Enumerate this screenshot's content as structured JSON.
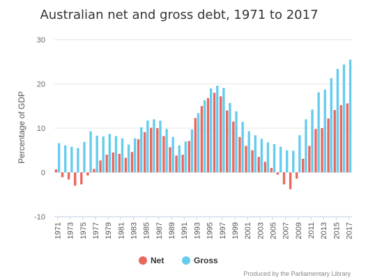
{
  "chart_data": {
    "type": "bar",
    "title": "Australian net and gross debt, 1971 to 2017",
    "ylabel": "Percentage of GDP",
    "xlabel": "",
    "ylim": [
      -10,
      30
    ],
    "yticks": [
      -10,
      0,
      10,
      20,
      30
    ],
    "grid": true,
    "legend_position": "bottom-center",
    "categories": [
      1971,
      1972,
      1973,
      1974,
      1975,
      1976,
      1977,
      1978,
      1979,
      1980,
      1981,
      1982,
      1983,
      1984,
      1985,
      1986,
      1987,
      1988,
      1989,
      1990,
      1991,
      1992,
      1993,
      1994,
      1995,
      1996,
      1997,
      1998,
      1999,
      2000,
      2001,
      2002,
      2003,
      2004,
      2005,
      2006,
      2007,
      2008,
      2009,
      2010,
      2011,
      2012,
      2013,
      2014,
      2015,
      2016,
      2017
    ],
    "x_tick_labels": [
      "1971",
      "1973",
      "1975",
      "1977",
      "1979",
      "1981",
      "1983",
      "1985",
      "1987",
      "1989",
      "1991",
      "1993",
      "1995",
      "1997",
      "1999",
      "2001",
      "2003",
      "2005",
      "2007",
      "2009",
      "2011",
      "2013",
      "2015",
      "2017"
    ],
    "series": [
      {
        "name": "Net",
        "color": "#e8685e",
        "values": [
          0.7,
          -1.1,
          -1.6,
          -3.0,
          -2.7,
          -0.7,
          0.8,
          2.7,
          4.0,
          4.5,
          4.2,
          3.3,
          4.6,
          7.5,
          9.1,
          10.1,
          10.0,
          8.2,
          5.7,
          3.8,
          4.0,
          7.1,
          12.3,
          15.0,
          16.8,
          18.0,
          17.2,
          14.0,
          11.5,
          8.0,
          6.0,
          5.0,
          3.5,
          2.4,
          1.0,
          -0.5,
          -2.7,
          -3.8,
          -1.4,
          3.1,
          6.0,
          9.8,
          10.0,
          12.2,
          14.1,
          15.2,
          15.6
        ]
      },
      {
        "name": "Gross",
        "color": "#66ccee",
        "values": [
          6.6,
          6.1,
          5.8,
          5.5,
          6.9,
          9.3,
          8.3,
          8.1,
          8.7,
          8.2,
          7.7,
          6.3,
          7.7,
          10.2,
          11.7,
          12.0,
          11.7,
          9.8,
          8.0,
          6.1,
          7.0,
          9.7,
          13.4,
          16.3,
          19.0,
          19.6,
          19.1,
          15.7,
          13.8,
          11.4,
          9.3,
          8.4,
          7.6,
          6.8,
          6.4,
          5.8,
          5.0,
          4.9,
          8.4,
          12.0,
          14.2,
          18.1,
          18.7,
          21.3,
          23.4,
          24.4,
          25.5
        ]
      }
    ]
  },
  "credits": "Produced by the Parliamentary Library"
}
